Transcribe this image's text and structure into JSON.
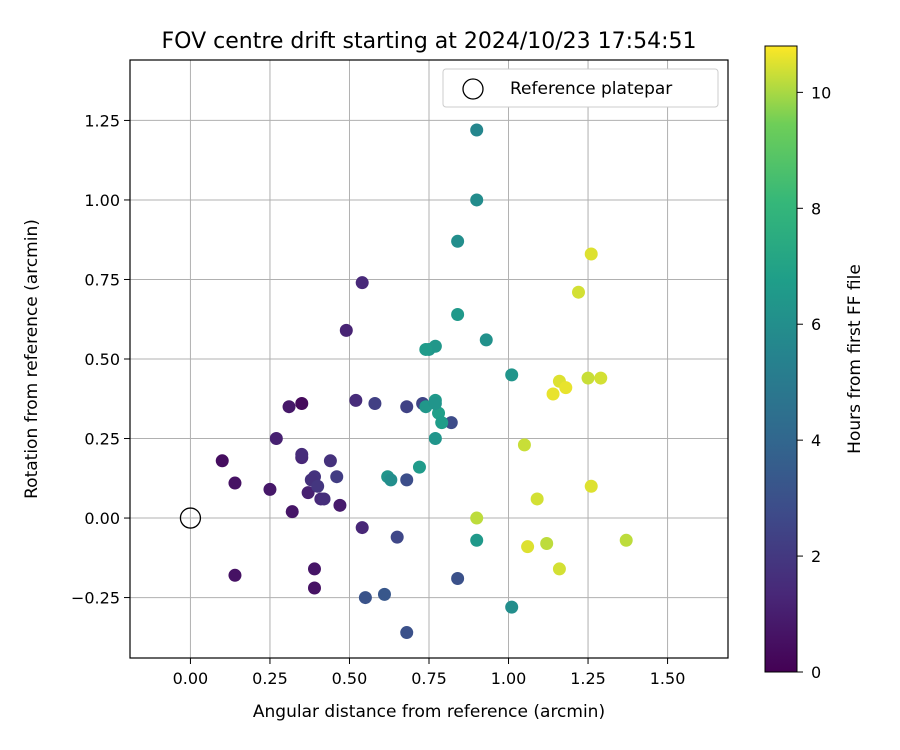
{
  "chart_data": {
    "type": "scatter",
    "title": "FOV centre drift starting at 2024/10/23 17:54:51",
    "xlabel": "Angular distance from reference (arcmin)",
    "ylabel": "Rotation from reference (arcmin)",
    "xlim": [
      -0.19,
      1.69
    ],
    "ylim": [
      -0.44,
      1.44
    ],
    "xticks": [
      0.0,
      0.25,
      0.5,
      0.75,
      1.0,
      1.25,
      1.5
    ],
    "xtick_labels": [
      "0.00",
      "0.25",
      "0.50",
      "0.75",
      "1.00",
      "1.25",
      "1.50"
    ],
    "yticks": [
      -0.25,
      0.0,
      0.25,
      0.5,
      0.75,
      1.0,
      1.25
    ],
    "ytick_labels": [
      "−0.25",
      "0.00",
      "0.25",
      "0.50",
      "0.75",
      "1.00",
      "1.25"
    ],
    "grid": true,
    "legend": {
      "placement": "top-right",
      "entries": [
        {
          "label": "Reference platepar",
          "marker": "open-circle",
          "color": "#000000"
        }
      ]
    },
    "reference_point": {
      "x": 0.0,
      "y": 0.0
    },
    "colorbar": {
      "label": "Hours from first FF file",
      "colormap": "viridis",
      "range": [
        0,
        10.8
      ],
      "ticks": [
        0,
        2,
        4,
        6,
        8,
        10
      ],
      "tick_labels": [
        "0",
        "2",
        "4",
        "6",
        "8",
        "10"
      ]
    },
    "series": [
      {
        "marker": "filled-circle",
        "x": [
          0.1,
          0.14,
          0.14,
          0.25,
          0.32,
          0.39,
          0.39,
          0.35,
          0.31,
          0.47,
          0.37,
          0.41,
          0.42,
          0.27,
          0.35,
          0.35,
          0.39,
          0.38,
          0.44,
          0.46,
          0.4,
          0.49,
          0.52,
          0.54,
          0.54,
          0.58,
          0.65,
          0.68,
          0.68,
          0.55,
          0.61,
          0.68,
          0.73,
          0.82,
          0.84,
          0.62,
          0.63,
          0.72,
          0.77,
          0.74,
          0.78,
          0.79,
          0.77,
          0.75,
          0.77,
          0.84,
          0.74,
          0.77,
          0.84,
          0.93,
          0.9,
          0.9,
          0.9,
          1.01,
          1.01,
          0.9,
          1.06,
          1.05,
          1.09,
          1.12,
          1.14,
          1.16,
          1.16,
          1.18,
          1.22,
          1.25,
          1.26,
          1.26,
          1.29,
          1.37
        ],
        "y": [
          0.18,
          0.11,
          -0.18,
          0.09,
          0.02,
          -0.16,
          -0.22,
          0.36,
          0.35,
          0.04,
          0.08,
          0.06,
          0.06,
          0.25,
          0.19,
          0.2,
          0.13,
          0.12,
          0.18,
          0.13,
          0.1,
          0.59,
          0.37,
          0.74,
          -0.03,
          0.36,
          -0.06,
          0.35,
          0.12,
          -0.25,
          -0.24,
          -0.36,
          0.36,
          0.3,
          -0.19,
          0.13,
          0.12,
          0.16,
          0.25,
          0.35,
          0.33,
          0.3,
          0.37,
          0.53,
          0.54,
          0.64,
          0.53,
          0.36,
          0.87,
          0.56,
          1.22,
          1.0,
          -0.07,
          0.45,
          -0.28,
          0.0,
          -0.09,
          0.23,
          0.06,
          -0.08,
          0.39,
          0.43,
          -0.16,
          0.41,
          0.71,
          0.44,
          0.83,
          0.1,
          0.44,
          -0.07
        ],
        "hours": [
          0.4,
          0.6,
          0.6,
          0.8,
          0.7,
          0.7,
          0.6,
          0.3,
          0.8,
          0.9,
          1.1,
          1.4,
          1.6,
          1.1,
          1.3,
          1.5,
          1.8,
          1.7,
          1.7,
          2.2,
          1.9,
          1.2,
          1.5,
          1.4,
          1.3,
          2.3,
          2.6,
          2.4,
          2.9,
          3.1,
          3.3,
          3.0,
          2.5,
          2.8,
          3.0,
          6.3,
          6.0,
          6.6,
          6.3,
          6.4,
          6.8,
          6.7,
          6.5,
          6.4,
          6.4,
          6.5,
          6.6,
          6.3,
          6.0,
          6.1,
          5.6,
          5.9,
          6.5,
          6.3,
          6.0,
          10.2,
          10.5,
          10.3,
          10.4,
          10.2,
          10.6,
          10.5,
          10.4,
          10.6,
          10.4,
          10.3,
          10.5,
          10.5,
          10.4,
          10.2
        ]
      }
    ]
  }
}
